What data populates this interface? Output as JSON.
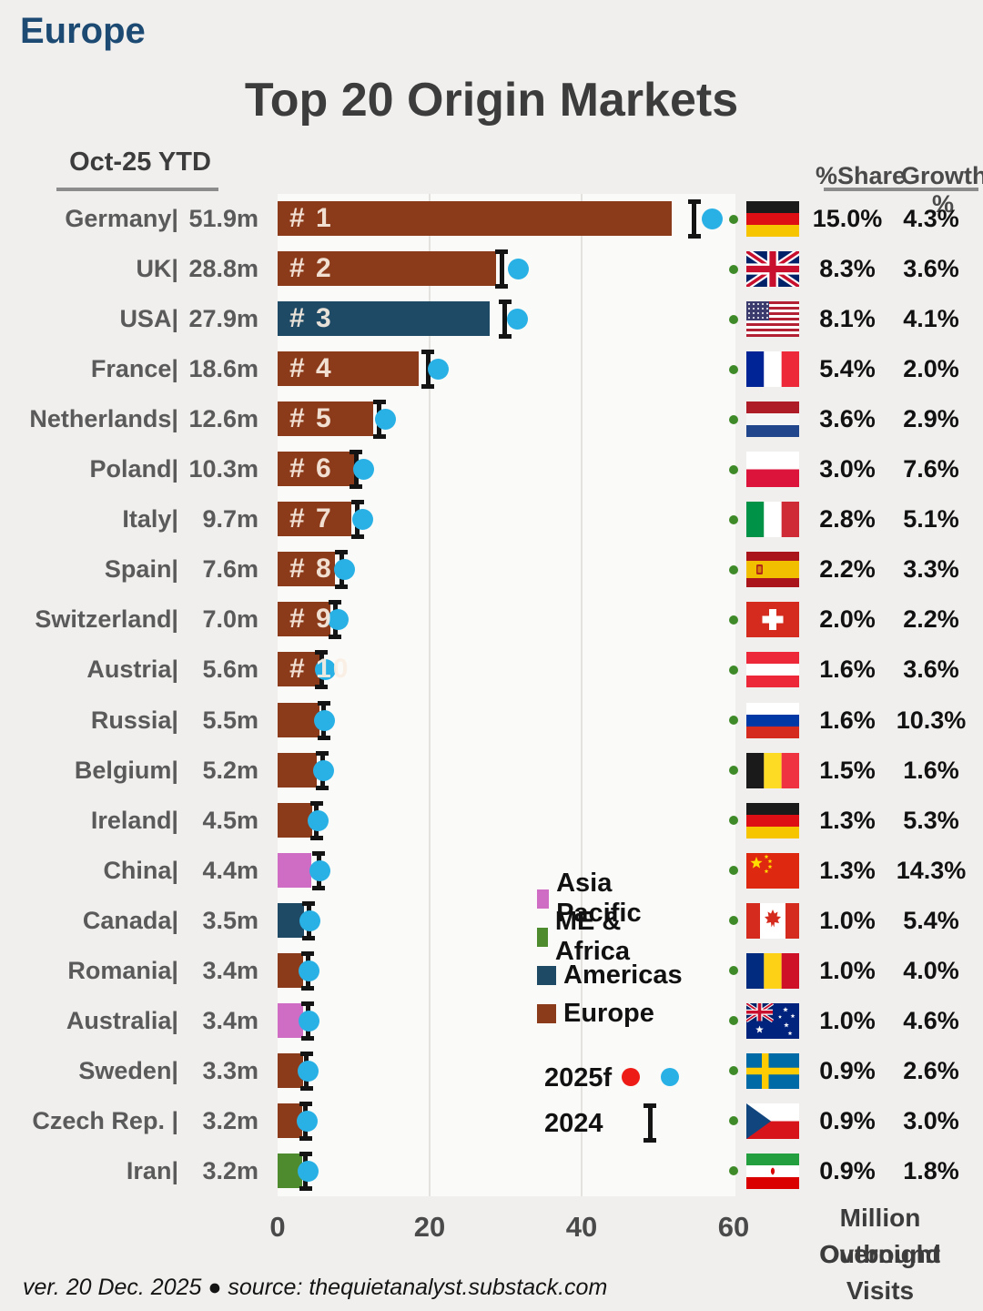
{
  "page": {
    "region_label": "Europe",
    "title": "Top 20 Origin Markets",
    "period_label": "Oct-25 YTD",
    "col_share": "%Share",
    "col_growth": "Growth %",
    "axis_label_line1": "Million Outbound",
    "axis_label_line2": "Overnight Visits",
    "footer": "ver. 20 Dec. 2025 ● source: thequietanalyst.substack.com"
  },
  "legend": {
    "groups": [
      {
        "label": "Asia Pacific",
        "color": "#cf6cc4"
      },
      {
        "label": "ME & Africa",
        "color": "#4e8b2f"
      },
      {
        "label": "Americas",
        "color": "#1f4a66"
      },
      {
        "label": "Europe",
        "color": "#8b3a1a"
      }
    ],
    "f2025_label": "2025f",
    "f2025_dot_colors": [
      "#ee1c16",
      "#29b1e6"
    ],
    "y2024_label": "2024"
  },
  "chart_data": {
    "type": "bar",
    "title": "Top 20 Origin Markets",
    "subtitle": "Oct-25 YTD",
    "xlabel": "Million Outbound Overnight Visits",
    "xlim": [
      0,
      60
    ],
    "xticks": [
      0,
      20,
      40,
      60
    ],
    "grid": "vertical",
    "series_note": {
      "bar": "Oct-25 YTD (millions)",
      "blue_dot": "2025f forecast",
      "whisker": "2024 actual"
    },
    "rows": [
      {
        "country": "Germany",
        "name_label": "Germany|",
        "value_label": "51.9m",
        "ytd": 51.9,
        "y2024": 54.8,
        "f2025": 57.2,
        "rank": 1,
        "rank_label": "# 1",
        "group": "Europe",
        "flag": "germany",
        "share": "15.0%",
        "growth": "4.3%"
      },
      {
        "country": "UK",
        "name_label": "UK|",
        "value_label": "28.8m",
        "ytd": 28.8,
        "y2024": 29.5,
        "f2025": 31.7,
        "rank": 2,
        "rank_label": "# 2",
        "group": "Europe",
        "flag": "uk",
        "share": "8.3%",
        "growth": "3.6%"
      },
      {
        "country": "USA",
        "name_label": "USA|",
        "value_label": "27.9m",
        "ytd": 27.9,
        "y2024": 29.9,
        "f2025": 31.5,
        "rank": 3,
        "rank_label": "# 3",
        "group": "Americas",
        "flag": "usa",
        "share": "8.1%",
        "growth": "4.1%"
      },
      {
        "country": "France",
        "name_label": "France|",
        "value_label": "18.6m",
        "ytd": 18.6,
        "y2024": 19.8,
        "f2025": 21.1,
        "rank": 4,
        "rank_label": "# 4",
        "group": "Europe",
        "flag": "france",
        "share": "5.4%",
        "growth": "2.0%"
      },
      {
        "country": "Netherlands",
        "name_label": "Netherlands|",
        "value_label": "12.6m",
        "ytd": 12.6,
        "y2024": 13.4,
        "f2025": 14.2,
        "rank": 5,
        "rank_label": "# 5",
        "group": "Europe",
        "flag": "netherlands",
        "share": "3.6%",
        "growth": "2.9%"
      },
      {
        "country": "Poland",
        "name_label": "Poland|",
        "value_label": "10.3m",
        "ytd": 10.3,
        "y2024": 10.3,
        "f2025": 11.3,
        "rank": 6,
        "rank_label": "# 6",
        "group": "Europe",
        "flag": "poland",
        "share": "3.0%",
        "growth": "7.6%"
      },
      {
        "country": "Italy",
        "name_label": "Italy|",
        "value_label": "9.7m",
        "ytd": 9.7,
        "y2024": 10.5,
        "f2025": 11.2,
        "rank": 7,
        "rank_label": "# 7",
        "group": "Europe",
        "flag": "italy",
        "share": "2.8%",
        "growth": "5.1%"
      },
      {
        "country": "Spain",
        "name_label": "Spain|",
        "value_label": "7.6m",
        "ytd": 7.6,
        "y2024": 8.4,
        "f2025": 8.8,
        "rank": 8,
        "rank_label": "# 8",
        "group": "Europe",
        "flag": "spain",
        "share": "2.2%",
        "growth": "3.3%"
      },
      {
        "country": "Switzerland",
        "name_label": "Switzerland|",
        "value_label": "7.0m",
        "ytd": 7.0,
        "y2024": 7.6,
        "f2025": 8.0,
        "rank": 9,
        "rank_label": "# 9",
        "group": "Europe",
        "flag": "switzerland",
        "share": "2.0%",
        "growth": "2.2%"
      },
      {
        "country": "Austria",
        "name_label": "Austria|",
        "value_label": "5.6m",
        "ytd": 5.6,
        "y2024": 5.8,
        "f2025": 6.3,
        "rank": 10,
        "rank_label": "# 10",
        "group": "Europe",
        "flag": "austria",
        "share": "1.6%",
        "growth": "3.6%"
      },
      {
        "country": "Russia",
        "name_label": "Russia|",
        "value_label": "5.5m",
        "ytd": 5.5,
        "y2024": 6.1,
        "f2025": 6.2,
        "rank": null,
        "rank_label": "",
        "group": "Europe",
        "flag": "russia",
        "share": "1.6%",
        "growth": "10.3%"
      },
      {
        "country": "Belgium",
        "name_label": "Belgium|",
        "value_label": "5.2m",
        "ytd": 5.2,
        "y2024": 5.9,
        "f2025": 6.1,
        "rank": null,
        "rank_label": "",
        "group": "Europe",
        "flag": "belgium",
        "share": "1.5%",
        "growth": "1.6%"
      },
      {
        "country": "Ireland",
        "name_label": "Ireland|",
        "value_label": "4.5m",
        "ytd": 4.5,
        "y2024": 5.1,
        "f2025": 5.3,
        "rank": null,
        "rank_label": "",
        "group": "Europe",
        "flag": "ireland",
        "share": "1.3%",
        "growth": "5.3%"
      },
      {
        "country": "China",
        "name_label": "China|",
        "value_label": "4.4m",
        "ytd": 4.4,
        "y2024": 5.4,
        "f2025": 5.6,
        "rank": null,
        "rank_label": "",
        "group": "Asia Pacific",
        "flag": "china",
        "share": "1.3%",
        "growth": "14.3%"
      },
      {
        "country": "Canada",
        "name_label": "Canada|",
        "value_label": "3.5m",
        "ytd": 3.5,
        "y2024": 4.1,
        "f2025": 4.3,
        "rank": null,
        "rank_label": "",
        "group": "Americas",
        "flag": "canada",
        "share": "1.0%",
        "growth": "5.4%"
      },
      {
        "country": "Romania",
        "name_label": "Romania|",
        "value_label": "3.4m",
        "ytd": 3.4,
        "y2024": 4.0,
        "f2025": 4.1,
        "rank": null,
        "rank_label": "",
        "group": "Europe",
        "flag": "romania",
        "share": "1.0%",
        "growth": "4.0%"
      },
      {
        "country": "Australia",
        "name_label": "Australia|",
        "value_label": "3.4m",
        "ytd": 3.4,
        "y2024": 4.0,
        "f2025": 4.1,
        "rank": null,
        "rank_label": "",
        "group": "Asia Pacific",
        "flag": "australia",
        "share": "1.0%",
        "growth": "4.6%"
      },
      {
        "country": "Sweden",
        "name_label": "Sweden|",
        "value_label": "3.3m",
        "ytd": 3.3,
        "y2024": 3.8,
        "f2025": 4.0,
        "rank": null,
        "rank_label": "",
        "group": "Europe",
        "flag": "sweden",
        "share": "0.9%",
        "growth": "2.6%"
      },
      {
        "country": "Czech Rep.",
        "name_label": "Czech Rep. |",
        "value_label": "3.2m",
        "ytd": 3.2,
        "y2024": 3.7,
        "f2025": 3.9,
        "rank": null,
        "rank_label": "",
        "group": "Europe",
        "flag": "czech",
        "share": "0.9%",
        "growth": "3.0%"
      },
      {
        "country": "Iran",
        "name_label": "Iran|",
        "value_label": "3.2m",
        "ytd": 3.2,
        "y2024": 3.7,
        "f2025": 4.0,
        "rank": null,
        "rank_label": "",
        "group": "ME & Africa",
        "flag": "iran",
        "share": "0.9%",
        "growth": "1.8%"
      }
    ]
  }
}
